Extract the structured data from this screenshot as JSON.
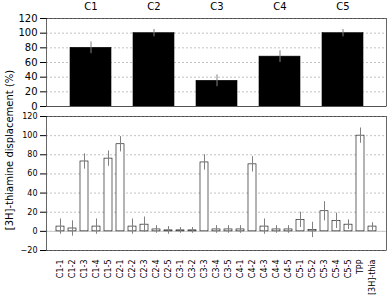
{
  "chart_data": [
    {
      "type": "bar",
      "ylabel": "[3H]-thiamine displacement (%)",
      "categories": [
        "C1",
        "C2",
        "C3",
        "C4",
        "C5"
      ],
      "values": [
        80,
        100,
        35,
        68,
        100
      ],
      "errors": [
        8,
        5,
        8,
        8,
        5
      ],
      "color": "black",
      "ylim": [
        0,
        120
      ],
      "yticks": [
        0,
        20,
        40,
        60,
        80,
        100,
        120
      ],
      "grid": true
    },
    {
      "type": "bar",
      "categories": [
        "C1-1",
        "C1-2",
        "C1-3",
        "C1-4",
        "C1-5",
        "C2-1",
        "C2-2",
        "C2-3",
        "C2-4",
        "C2-5",
        "C3-1",
        "C3-2",
        "C3-3",
        "C3-4",
        "C3-5",
        "C4-1",
        "C4-2",
        "C4-3",
        "C4-4",
        "C4-5",
        "C5-1",
        "C5-2",
        "C5-3",
        "C5-4",
        "C5-5",
        "TPP",
        "[3H]-thia"
      ],
      "values": [
        5,
        3,
        73,
        5,
        76,
        91,
        5,
        7,
        2,
        1,
        1,
        1,
        72,
        2,
        2,
        2,
        70,
        5,
        2,
        2,
        12,
        1.5,
        21,
        11,
        7,
        100,
        5
      ],
      "errors": [
        8,
        8,
        8,
        8,
        8,
        8,
        8,
        8,
        4,
        4,
        3,
        3,
        8,
        4,
        4,
        4,
        8,
        8,
        4,
        4,
        8,
        8,
        10,
        8,
        5,
        8,
        4
      ],
      "color": "white",
      "ylim": [
        -20,
        120
      ],
      "yticks": [
        -20,
        0,
        20,
        40,
        60,
        80,
        100,
        120
      ],
      "grid": true
    }
  ]
}
